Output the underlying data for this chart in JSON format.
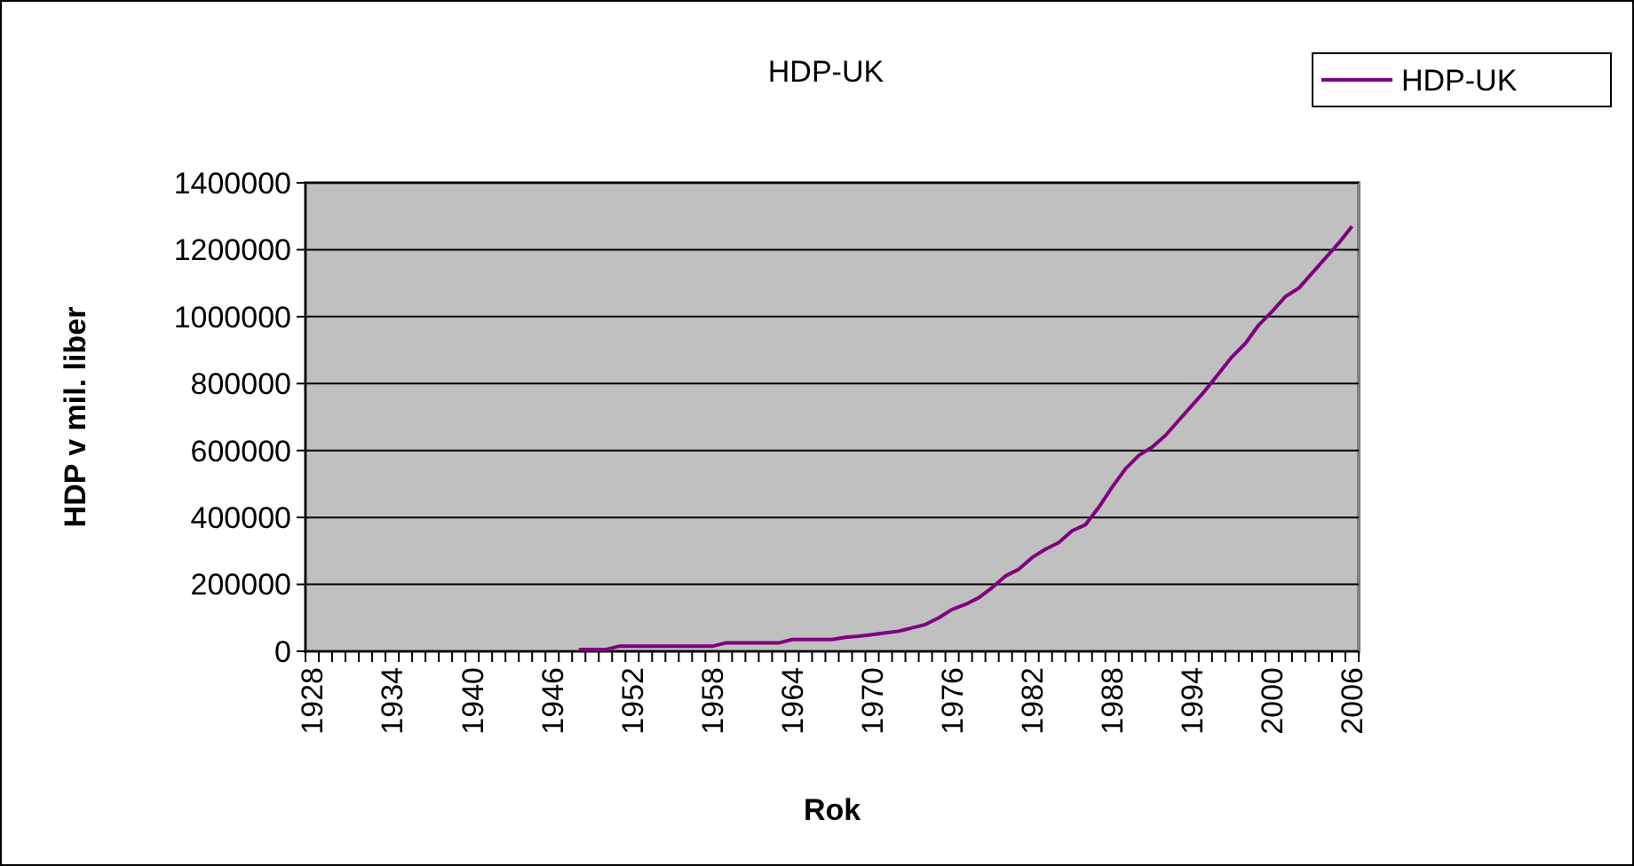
{
  "chart_data": {
    "type": "line",
    "title": "HDP-UK",
    "xlabel": "Rok",
    "ylabel": "HDP v mil. liber",
    "categories": [
      "1928",
      null,
      null,
      null,
      null,
      null,
      "1934",
      null,
      null,
      null,
      null,
      null,
      "1940",
      null,
      null,
      null,
      null,
      null,
      "1946",
      null,
      null,
      null,
      null,
      null,
      "1952",
      null,
      null,
      null,
      null,
      null,
      "1958",
      null,
      null,
      null,
      null,
      null,
      "1964",
      null,
      null,
      null,
      null,
      null,
      "1970",
      null,
      null,
      null,
      null,
      null,
      "1976",
      null,
      null,
      null,
      null,
      null,
      "1982",
      null,
      null,
      null,
      null,
      null,
      "1988",
      null,
      null,
      null,
      null,
      null,
      "1994",
      null,
      null,
      null,
      null,
      null,
      "2000",
      null,
      null,
      null,
      null,
      null,
      "2006"
    ],
    "series": [
      {
        "name": "HDP-UK",
        "color": "#800080",
        "values": [
          null,
          null,
          null,
          null,
          null,
          null,
          null,
          null,
          null,
          null,
          null,
          null,
          null,
          null,
          null,
          null,
          null,
          null,
          null,
          null,
          5000,
          5000,
          5000,
          15000,
          15000,
          15000,
          15000,
          15000,
          15000,
          15000,
          15000,
          25000,
          25000,
          25000,
          25000,
          25000,
          35000,
          35000,
          35000,
          35000,
          42000,
          45000,
          50000,
          55000,
          60000,
          70000,
          80000,
          100000,
          125000,
          140000,
          160000,
          190000,
          225000,
          245000,
          280000,
          305000,
          325000,
          360000,
          378000,
          430000,
          490000,
          545000,
          585000,
          610000,
          645000,
          690000,
          735000,
          780000,
          830000,
          880000,
          920000,
          975000,
          1015000,
          1060000,
          1085000,
          1130000,
          1175000,
          1220000,
          1270000
        ]
      }
    ],
    "ylim": [
      0,
      1400000
    ],
    "yticks": [
      0,
      200000,
      400000,
      600000,
      800000,
      1000000,
      1200000,
      1400000
    ],
    "grid": "y",
    "legend": "top right"
  }
}
